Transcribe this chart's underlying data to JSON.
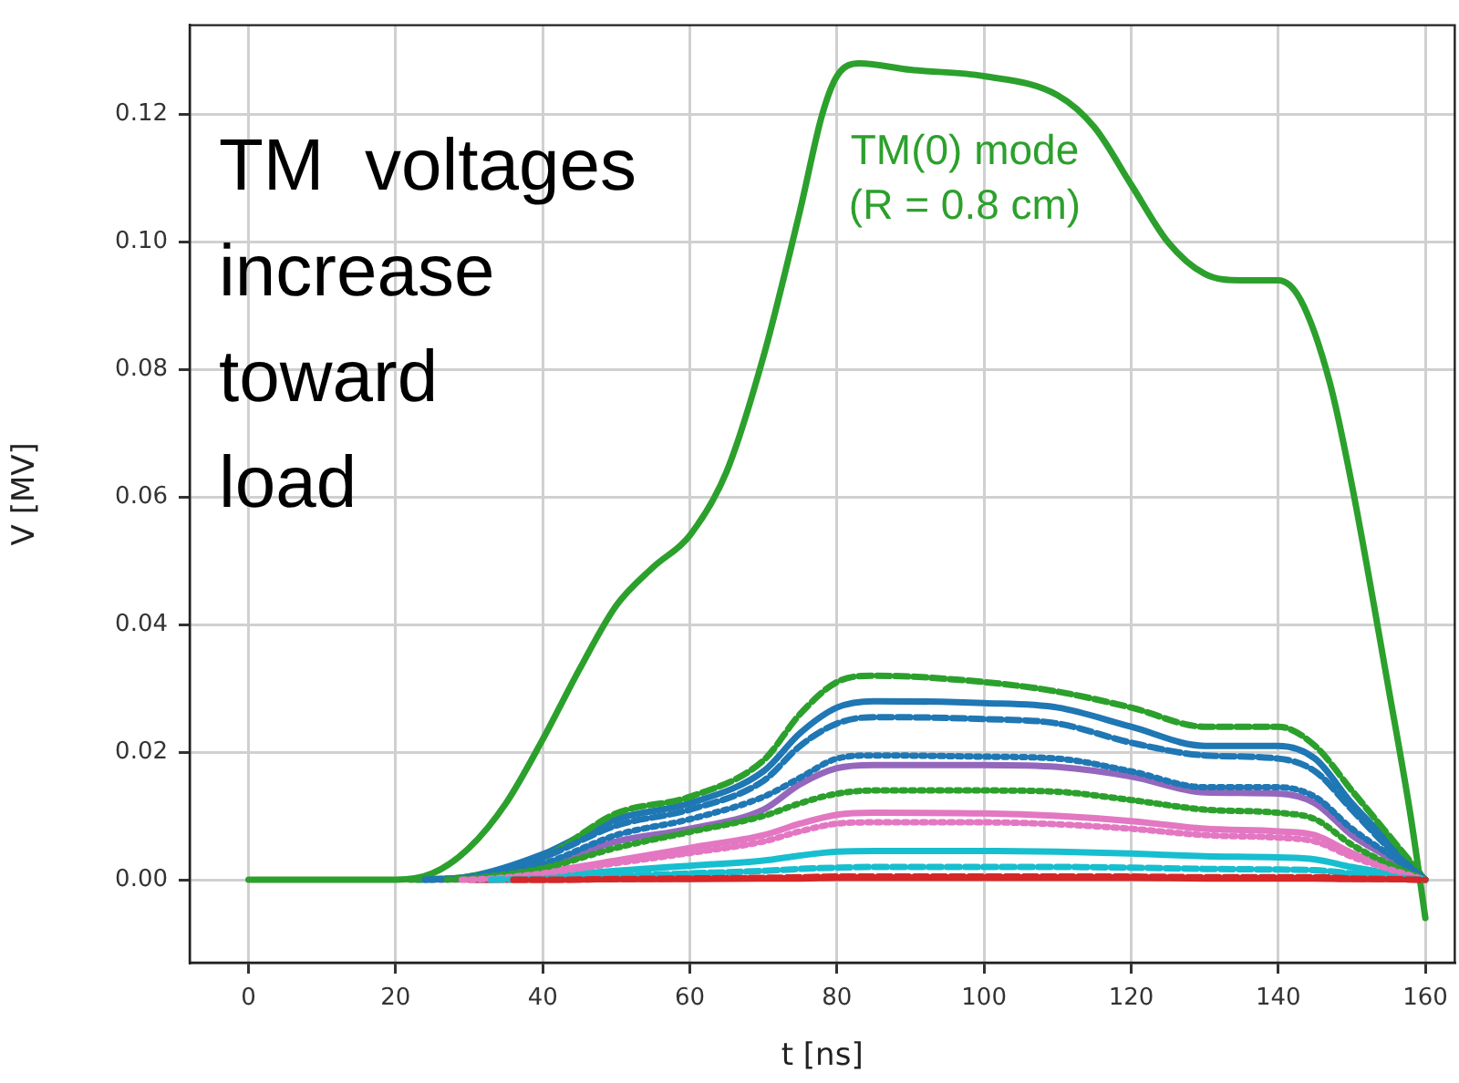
{
  "chart_data": {
    "type": "line",
    "xlabel": "t [ns]",
    "ylabel": "V [MV]",
    "x": [
      30,
      40,
      50,
      60,
      70,
      75,
      80,
      85,
      100,
      110,
      120,
      130,
      140,
      145,
      150,
      155,
      160
    ],
    "xlim": [
      -8,
      164
    ],
    "xticks": [
      0,
      20,
      40,
      60,
      80,
      100,
      120,
      140,
      160
    ],
    "ylim": [
      -0.013,
      0.134
    ],
    "yticks": [
      {
        "value": 0,
        "label": "0.00"
      },
      {
        "value": 0.02,
        "label": "0.02"
      },
      {
        "value": 0.04,
        "label": "0.04"
      },
      {
        "value": 0.06,
        "label": "0.06"
      },
      {
        "value": 0.08,
        "label": "0.08"
      },
      {
        "value": 0.1,
        "label": "0.10"
      },
      {
        "value": 0.12,
        "label": "0.12"
      }
    ],
    "grid": true,
    "legend": false,
    "marker": "none",
    "annotations": [
      "TM  voltages\nincrease\ntoward\nload"
    ],
    "series": [
      {
        "name": "TM(0) mode\n(R = 0.8 cm)",
        "color": "#2ca02c",
        "line_style": "solid",
        "x": [
          0,
          20,
          25,
          30,
          35,
          40,
          45,
          50,
          55,
          60,
          65,
          70,
          75,
          78,
          80,
          83,
          90,
          100,
          110,
          115,
          120,
          125,
          130,
          135,
          140,
          143,
          147,
          150,
          155,
          158,
          160
        ],
        "values": [
          0,
          0,
          0.001,
          0.005,
          0.012,
          0.022,
          0.033,
          0.043,
          0.049,
          0.054,
          0.064,
          0.082,
          0.105,
          0.12,
          0.126,
          0.128,
          0.127,
          0.126,
          0.123,
          0.118,
          0.109,
          0.1,
          0.095,
          0.094,
          0.094,
          0.091,
          0.078,
          0.062,
          0.03,
          0.01,
          -0.006
        ]
      },
      {
        "color": "#2ca02c",
        "line_style": "dashed",
        "x": [
          22,
          30,
          40,
          50,
          60,
          70,
          75,
          80,
          85,
          100,
          110,
          120,
          130,
          140,
          145,
          150,
          155,
          160
        ],
        "values": [
          0,
          0.0005,
          0.0034,
          0.0104,
          0.013,
          0.0187,
          0.026,
          0.031,
          0.032,
          0.031,
          0.0295,
          0.027,
          0.024,
          0.024,
          0.021,
          0.014,
          0.007,
          0
        ]
      },
      {
        "color": "#1f77b4",
        "line_style": "solid",
        "x": [
          23,
          30,
          40,
          50,
          60,
          70,
          75,
          80,
          85,
          100,
          110,
          120,
          130,
          140,
          145,
          150,
          155,
          160
        ],
        "values": [
          0,
          0.0005,
          0.004,
          0.0095,
          0.012,
          0.017,
          0.023,
          0.027,
          0.028,
          0.0277,
          0.027,
          0.024,
          0.021,
          0.021,
          0.019,
          0.012,
          0.006,
          0
        ]
      },
      {
        "color": "#1f77b4",
        "line_style": "dashed",
        "x": [
          24,
          30,
          40,
          50,
          60,
          70,
          75,
          80,
          85,
          100,
          110,
          120,
          130,
          140,
          145,
          150,
          155,
          160
        ],
        "values": [
          0,
          0.0004,
          0.0035,
          0.0085,
          0.011,
          0.0155,
          0.021,
          0.0245,
          0.0255,
          0.0252,
          0.0245,
          0.0215,
          0.0195,
          0.019,
          0.017,
          0.011,
          0.005,
          0
        ]
      },
      {
        "color": "#1f77b4",
        "line_style": "dotted",
        "x": [
          25,
          30,
          40,
          50,
          60,
          70,
          75,
          80,
          85,
          100,
          110,
          120,
          130,
          140,
          145,
          150,
          155,
          160
        ],
        "values": [
          0,
          0.0003,
          0.0025,
          0.007,
          0.0095,
          0.013,
          0.016,
          0.019,
          0.0195,
          0.0193,
          0.019,
          0.017,
          0.0145,
          0.0145,
          0.013,
          0.008,
          0.004,
          0
        ]
      },
      {
        "color": "#9467bd",
        "line_style": "solid",
        "x": [
          26,
          30,
          40,
          50,
          60,
          70,
          75,
          80,
          85,
          100,
          110,
          120,
          130,
          140,
          145,
          150,
          155,
          160
        ],
        "values": [
          0,
          0.0003,
          0.0022,
          0.006,
          0.008,
          0.011,
          0.015,
          0.0175,
          0.018,
          0.018,
          0.0177,
          0.0162,
          0.0137,
          0.0135,
          0.012,
          0.007,
          0.0035,
          0
        ]
      },
      {
        "color": "#2ca02c",
        "line_style": "dotted",
        "x": [
          27,
          30,
          40,
          50,
          60,
          70,
          75,
          80,
          85,
          100,
          110,
          120,
          130,
          140,
          145,
          150,
          155,
          160
        ],
        "values": [
          0,
          0.0002,
          0.0018,
          0.005,
          0.0075,
          0.01,
          0.012,
          0.0135,
          0.014,
          0.014,
          0.0138,
          0.0125,
          0.011,
          0.0105,
          0.0095,
          0.0055,
          0.0025,
          0
        ]
      },
      {
        "color": "#e377c2",
        "line_style": "solid",
        "x": [
          28,
          30,
          40,
          50,
          60,
          70,
          75,
          80,
          85,
          100,
          110,
          120,
          130,
          140,
          145,
          150,
          155,
          160
        ],
        "values": [
          0,
          0.0001,
          0.0012,
          0.003,
          0.005,
          0.007,
          0.0088,
          0.0102,
          0.0105,
          0.0104,
          0.01,
          0.0092,
          0.008,
          0.0076,
          0.007,
          0.0042,
          0.002,
          0
        ]
      },
      {
        "color": "#e377c2",
        "line_style": "dotted",
        "x": [
          29,
          32,
          40,
          50,
          60,
          70,
          75,
          80,
          85,
          100,
          110,
          120,
          130,
          140,
          145,
          150,
          155,
          160
        ],
        "values": [
          0,
          0.0001,
          0.001,
          0.0026,
          0.0042,
          0.006,
          0.0076,
          0.0088,
          0.009,
          0.009,
          0.0087,
          0.008,
          0.007,
          0.0066,
          0.006,
          0.0036,
          0.0017,
          0
        ]
      },
      {
        "color": "#17becf",
        "line_style": "solid",
        "x": [
          31,
          35,
          40,
          50,
          60,
          70,
          75,
          80,
          85,
          100,
          110,
          120,
          130,
          140,
          145,
          150,
          155,
          160
        ],
        "values": [
          0,
          0.0001,
          0.0005,
          0.0014,
          0.0022,
          0.003,
          0.0038,
          0.0044,
          0.0045,
          0.0045,
          0.0044,
          0.0041,
          0.0037,
          0.0035,
          0.0032,
          0.002,
          0.001,
          0
        ]
      },
      {
        "color": "#17becf",
        "line_style": "dashed",
        "x": [
          33,
          37,
          40,
          50,
          60,
          70,
          75,
          80,
          85,
          100,
          110,
          120,
          130,
          140,
          145,
          150,
          155,
          160
        ],
        "values": [
          0,
          0.0001,
          0.0002,
          0.0006,
          0.001,
          0.0014,
          0.0017,
          0.0019,
          0.002,
          0.002,
          0.002,
          0.0019,
          0.0017,
          0.0016,
          0.0015,
          0.001,
          0.0005,
          0
        ]
      },
      {
        "color": "#d62728",
        "line_style": "solid",
        "values": [
          0,
          0,
          0.0001,
          0.0001,
          0.0002,
          0.0002,
          0.0003,
          0.0003,
          0.0003,
          0.0003,
          0.0003,
          0.0002,
          0.0002,
          0.0002,
          0.0001,
          0.0001,
          0
        ]
      },
      {
        "color": "#d62728",
        "line_style": "dashed",
        "x": [
          36,
          40,
          50,
          60,
          70,
          75,
          80,
          85,
          100,
          110,
          120,
          130,
          140,
          145,
          150,
          155,
          160
        ],
        "values": [
          0,
          0,
          0.0001,
          0.0002,
          0.0003,
          0.0004,
          0.0005,
          0.0005,
          0.0005,
          0.0005,
          0.0005,
          0.0004,
          0.0004,
          0.0004,
          0.0002,
          0.0001,
          0
        ]
      }
    ]
  }
}
